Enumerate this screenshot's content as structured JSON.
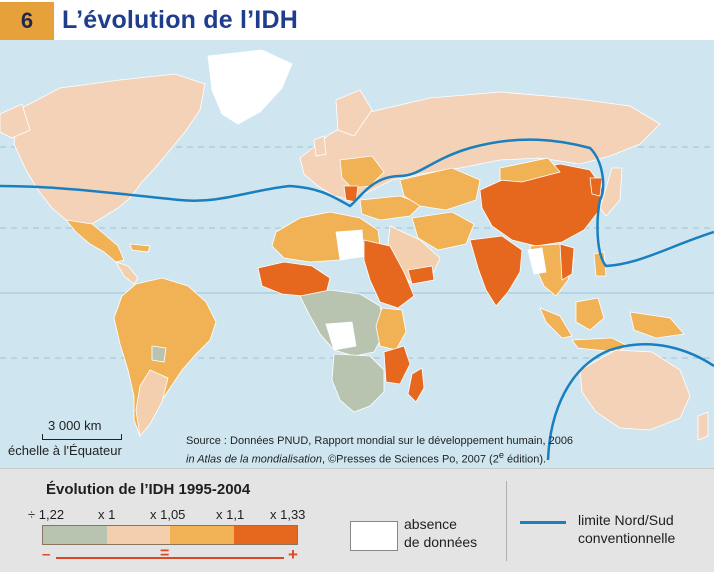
{
  "header": {
    "figure_number": "6",
    "title": "L’évolution de l’IDH"
  },
  "map": {
    "colors": {
      "ocean": "#cfe6f1",
      "nord_land": "#f3d2b8",
      "class_1": "#b9c4b0",
      "class_2": "#f3cfae",
      "class_3": "#f0b254",
      "class_4": "#e6681e",
      "no_data": "#ffffff",
      "ns_line": "#1a7fbf"
    },
    "scale": {
      "distance": "3 000 km",
      "caption": "échelle à l'Équateur"
    },
    "source": {
      "line1": "Source : Données PNUD, Rapport mondial sur le développement humain, 2006",
      "line2_italic": "in Atlas de la mondialisation",
      "line2_rest": ", ©Presses de Sciences Po, 2007 (2",
      "line2_sup": "e",
      "line2_end": " édition)."
    }
  },
  "legend": {
    "title": "Évolution de l’IDH 1995-2004",
    "ticks": [
      "÷ 1,22",
      "x 1",
      "x 1,05",
      "x 1,1",
      "x 1,33"
    ],
    "arrow": {
      "minus": "–",
      "equal": "=",
      "plus": "+"
    },
    "no_data": {
      "line1": "absence",
      "line2": "de données"
    },
    "ns_line": {
      "line1": "limite Nord/Sud",
      "line2": "conventionnelle"
    }
  }
}
